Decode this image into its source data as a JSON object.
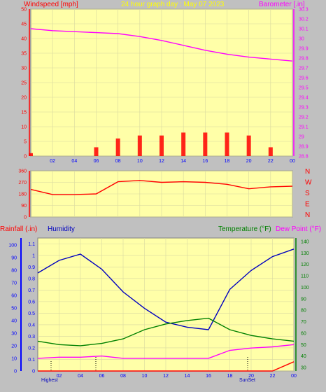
{
  "header": {
    "left_label": "Windspeed [mph]",
    "center_label": "24 hour graph day : May 07 2023",
    "right_label": "Barometer [.in]"
  },
  "colors": {
    "plot_bg": "#ffffa8",
    "frame_bg": "#c0c0c0",
    "wind": "#ff0000",
    "gust_secondary": "#0000ff",
    "wind_green": "#008000",
    "barometer": "#ff00ff",
    "humidity": "#0000c0",
    "temperature": "#008000",
    "dewpoint": "#ff00ff",
    "rain": "#ff0000",
    "title_yellow": "#ffff00",
    "tick_blue": "#0000ff"
  },
  "x_ticks": [
    "02",
    "04",
    "06",
    "08",
    "10",
    "12",
    "14",
    "16",
    "18",
    "20",
    "22",
    "00"
  ],
  "wind_axis": {
    "ticks": [
      "0",
      "5",
      "10",
      "15",
      "20",
      "25",
      "30",
      "35",
      "40",
      "45",
      "50"
    ]
  },
  "baro_axis": {
    "ticks": [
      "28.8",
      "28.9",
      "29",
      "29.1",
      "29.2",
      "29.3",
      "29.4",
      "29.5",
      "29.6",
      "29.7",
      "29.8",
      "29.9",
      "30",
      "30.1",
      "30.2",
      "30.3"
    ]
  },
  "dir_axis": {
    "ticks": [
      "0",
      "90",
      "180",
      "270",
      "360"
    ],
    "compass": [
      "N",
      "W",
      "S",
      "E",
      "N"
    ]
  },
  "bottom_header": {
    "rain_label": "Rainfall (.in)",
    "humidity_label": "Humidity",
    "temp_label": "Temperature (°F)",
    "dew_label": "Dew Point (°F)"
  },
  "rain_axis": {
    "ticks": [
      "0",
      "0.1",
      "0.2",
      "0.3",
      "0.4",
      "0.5",
      "0.6",
      "0.7",
      "0.8",
      "0.9",
      "1",
      "1.1"
    ]
  },
  "hum_axis": {
    "ticks": [
      "0",
      "10",
      "20",
      "30",
      "40",
      "50",
      "60",
      "70",
      "80",
      "90",
      "100"
    ]
  },
  "temp_axis": {
    "ticks": [
      "30",
      "40",
      "50",
      "60",
      "70",
      "80",
      "90",
      "100",
      "110",
      "120",
      "130",
      "140"
    ]
  },
  "markers": {
    "highest": "Highest",
    "sunset": "SunSet"
  },
  "chart_data": [
    {
      "type": "line",
      "title": "24 hour graph day : May 07 2023",
      "x": [
        0,
        2,
        4,
        6,
        8,
        10,
        12,
        14,
        16,
        18,
        20,
        22,
        24
      ],
      "xlabels": [
        "00",
        "02",
        "04",
        "06",
        "08",
        "10",
        "12",
        "14",
        "16",
        "18",
        "20",
        "22",
        "00"
      ],
      "series": [
        {
          "name": "Windspeed [mph]",
          "axis": "left",
          "ylim": [
            0,
            50
          ],
          "values": [
            1,
            0,
            0,
            3,
            6,
            7,
            7,
            8,
            8,
            8,
            7,
            3,
            0
          ]
        },
        {
          "name": "Barometer [.in]",
          "axis": "right",
          "ylim": [
            28.8,
            30.3
          ],
          "values": [
            30.1,
            30.08,
            30.07,
            30.06,
            30.05,
            30.02,
            29.98,
            29.93,
            29.88,
            29.84,
            29.81,
            29.79,
            29.77
          ]
        }
      ]
    },
    {
      "type": "line",
      "ylim": [
        0,
        360
      ],
      "x": [
        0,
        2,
        4,
        6,
        8,
        10,
        12,
        14,
        16,
        18,
        20,
        22,
        24
      ],
      "series": [
        {
          "name": "Wind Direction",
          "values": [
            215,
            175,
            175,
            180,
            275,
            285,
            270,
            275,
            270,
            255,
            220,
            235,
            240
          ]
        }
      ]
    },
    {
      "type": "line",
      "x": [
        0,
        2,
        4,
        6,
        8,
        10,
        12,
        14,
        16,
        18,
        20,
        22,
        24
      ],
      "series": [
        {
          "name": "Humidity",
          "axis": "left",
          "ylim": [
            0,
            100
          ],
          "values": [
            75,
            85,
            90,
            78,
            60,
            47,
            36,
            32,
            30,
            62,
            77,
            88,
            94
          ]
        },
        {
          "name": "Temperature (°F)",
          "axis": "right",
          "ylim": [
            30,
            140
          ],
          "values": [
            53,
            50,
            49,
            51,
            55,
            63,
            68,
            71,
            73,
            63,
            58,
            55,
            53
          ]
        },
        {
          "name": "Dew Point (°F)",
          "axis": "right",
          "ylim": [
            30,
            140
          ],
          "values": [
            38,
            39,
            39,
            40,
            38,
            38,
            38,
            38,
            38,
            45,
            47,
            48,
            50
          ]
        },
        {
          "name": "Rainfall (.in)",
          "axis": "left2",
          "ylim": [
            0,
            1.15
          ],
          "values": [
            0,
            0,
            0,
            0,
            0,
            0,
            0,
            0,
            0,
            0,
            0,
            0,
            0.08
          ]
        }
      ]
    }
  ]
}
